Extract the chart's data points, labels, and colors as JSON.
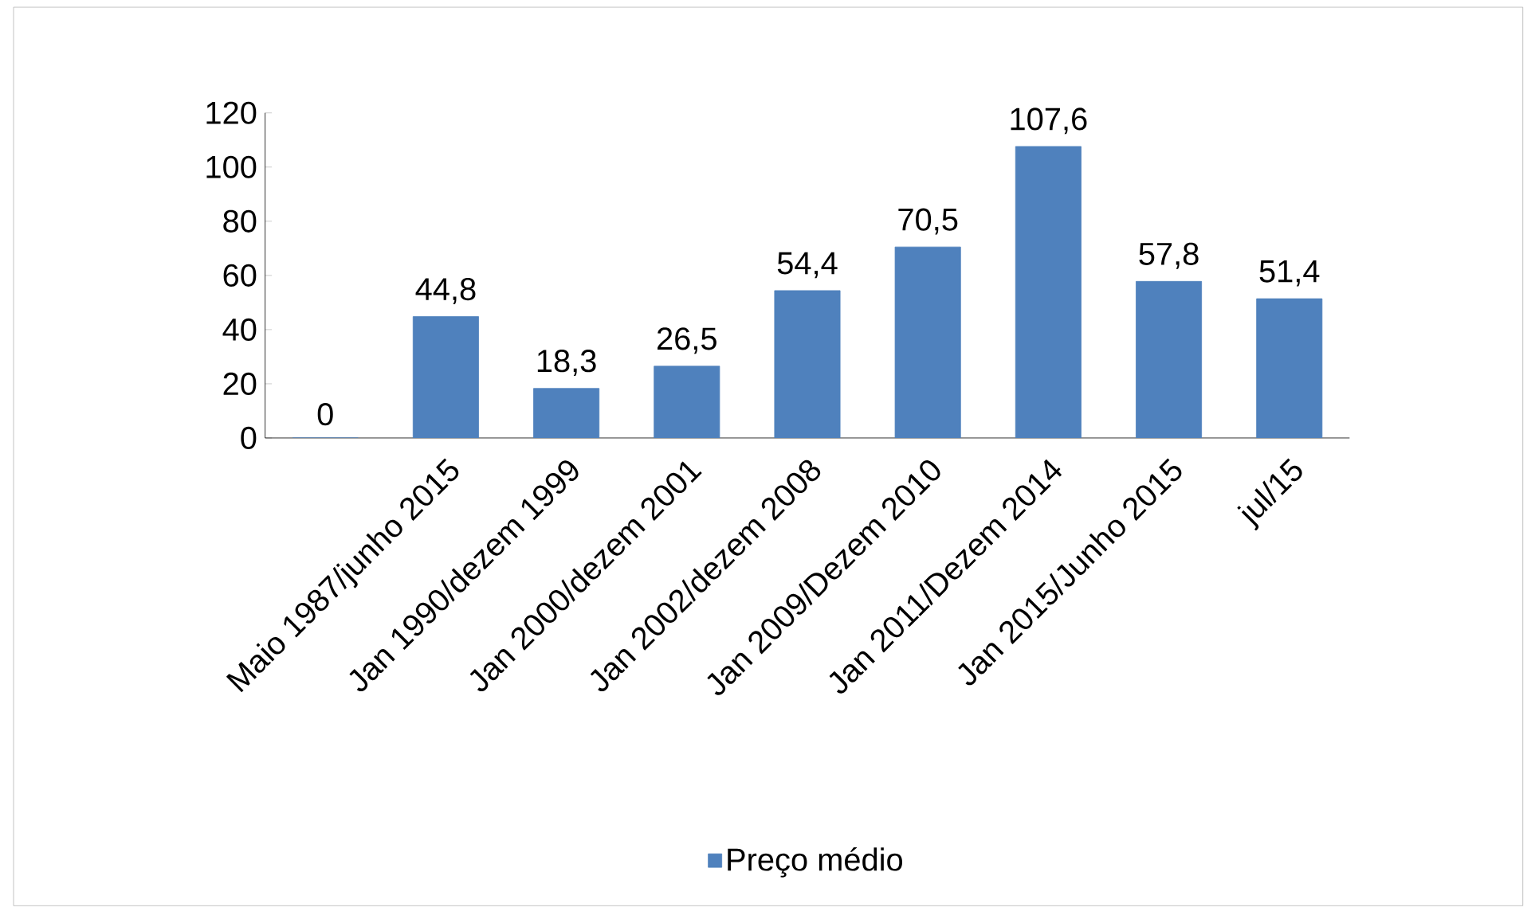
{
  "chart_data": {
    "type": "bar",
    "categories": [
      null,
      "Maio 1987/junho 2015",
      "Jan 1990/dezem 1999",
      "Jan 2000/dezem 2001",
      "Jan 2002/dezem 2008",
      "Jan 2009/Dezem 2010",
      "Jan 2011/Dezem 2014",
      "Jan 2015/Junho 2015",
      "jul/15"
    ],
    "series": [
      {
        "name": "Preço médio",
        "color": "#4f81bd",
        "values": [
          0,
          44.8,
          18.3,
          26.5,
          54.4,
          70.5,
          107.6,
          57.8,
          51.4
        ],
        "value_labels": [
          "0",
          "44,8",
          "18,3",
          "26,5",
          "54,4",
          "70,5",
          "107,6",
          "57,8",
          "51,4"
        ]
      }
    ],
    "ylim": [
      0,
      120
    ],
    "yticks": [
      0,
      20,
      40,
      60,
      80,
      100,
      120
    ],
    "grid": false,
    "legend": "bottom"
  }
}
